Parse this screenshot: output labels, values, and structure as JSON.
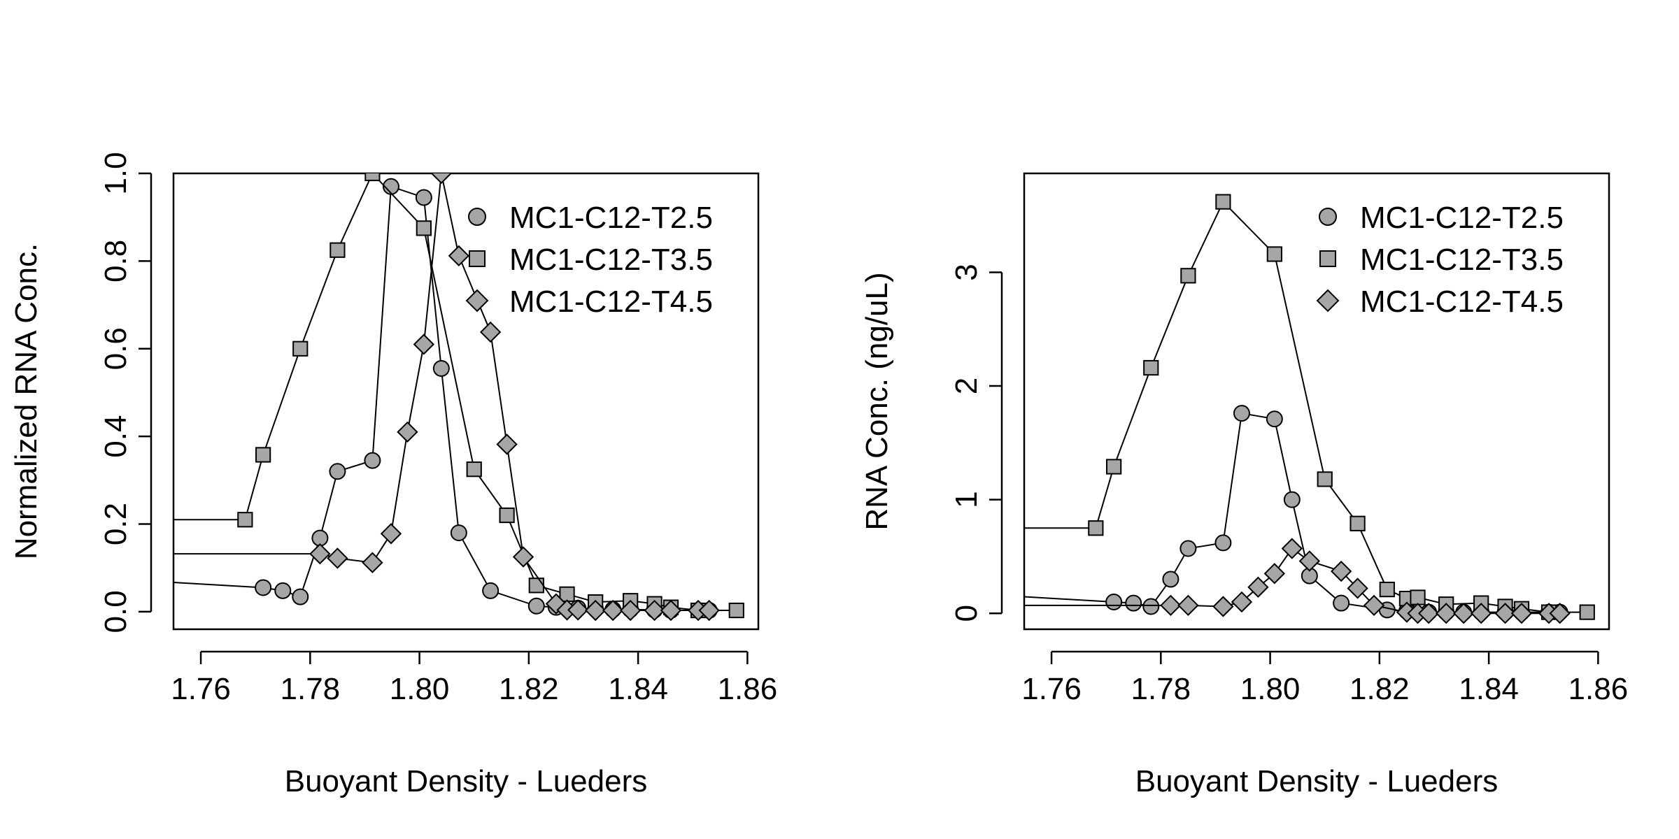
{
  "chart_data": [
    {
      "type": "line",
      "xlabel": "Buoyant Density - Lueders",
      "ylabel": "Normalized RNA Conc.",
      "xlim": [
        1.755,
        1.862
      ],
      "ylim": [
        -0.04,
        1.0
      ],
      "xticks": [
        1.76,
        1.78,
        1.8,
        1.82,
        1.84,
        1.86
      ],
      "xtick_labels": [
        "1.76",
        "1.78",
        "1.80",
        "1.82",
        "1.84",
        "1.86"
      ],
      "yticks": [
        0.0,
        0.2,
        0.4,
        0.6,
        0.8,
        1.0
      ],
      "ytick_labels": [
        "0.0",
        "0.2",
        "0.4",
        "0.6",
        "0.8",
        "1.0"
      ],
      "legend_position": "top-right",
      "grid": false,
      "marker_fill": "#a6a6a6",
      "series": [
        {
          "name": "MC1-C12-T2.5",
          "marker": "circle",
          "x": [
            1.7714,
            1.775,
            1.7782,
            1.7818,
            1.785,
            1.7914,
            1.7948,
            1.8008,
            1.804,
            1.8072,
            1.813,
            1.8214,
            1.825,
            1.829,
            1.8322,
            1.8354,
            1.8386,
            1.843,
            1.846,
            1.851,
            1.853
          ],
          "y": [
            0.055,
            0.048,
            0.034,
            0.168,
            0.32,
            0.345,
            0.97,
            0.945,
            0.555,
            0.18,
            0.048,
            0.013,
            0.01,
            0.008,
            0.006,
            0.005,
            0.005,
            0.004,
            0.003,
            0.003,
            0.003
          ]
        },
        {
          "name": "MC1-C12-T3.5",
          "marker": "square",
          "x": [
            1.7681,
            1.7714,
            1.7782,
            1.785,
            1.7914,
            1.8008,
            1.81,
            1.816,
            1.8214,
            1.827,
            1.8322,
            1.8386,
            1.843,
            1.846,
            1.851,
            1.858
          ],
          "y": [
            0.21,
            0.358,
            0.6,
            0.825,
            1.0,
            0.875,
            0.325,
            0.22,
            0.06,
            0.04,
            0.022,
            0.025,
            0.018,
            0.01,
            0.003,
            0.003
          ]
        },
        {
          "name": "MC1-C12-T4.5",
          "marker": "diamond",
          "x": [
            1.7818,
            1.785,
            1.7914,
            1.7948,
            1.7978,
            1.8008,
            1.804,
            1.8072,
            1.813,
            1.816,
            1.819,
            1.825,
            1.827,
            1.829,
            1.8322,
            1.8354,
            1.8386,
            1.843,
            1.846,
            1.851,
            1.853
          ],
          "y": [
            0.132,
            0.122,
            0.112,
            0.178,
            0.41,
            0.61,
            1.0,
            0.812,
            0.638,
            0.382,
            0.125,
            0.018,
            0.004,
            0.004,
            0.003,
            0.003,
            0.003,
            0.003,
            0.003,
            0.003,
            0.003
          ]
        }
      ]
    },
    {
      "type": "line",
      "xlabel": "Buoyant Density - Lueders",
      "ylabel": "RNA Conc.  (ng/uL)",
      "xlim": [
        1.755,
        1.862
      ],
      "ylim": [
        -0.14,
        3.87
      ],
      "xticks": [
        1.76,
        1.78,
        1.8,
        1.82,
        1.84,
        1.86
      ],
      "xtick_labels": [
        "1.76",
        "1.78",
        "1.80",
        "1.82",
        "1.84",
        "1.86"
      ],
      "yticks": [
        0,
        1,
        2,
        3
      ],
      "ytick_labels": [
        "0",
        "1",
        "2",
        "3"
      ],
      "legend_position": "top-right",
      "grid": false,
      "marker_fill": "#a6a6a6",
      "series": [
        {
          "name": "MC1-C12-T2.5",
          "marker": "circle",
          "x": [
            1.7714,
            1.775,
            1.7782,
            1.7818,
            1.785,
            1.7914,
            1.7948,
            1.8008,
            1.804,
            1.8072,
            1.813,
            1.8214,
            1.825,
            1.829,
            1.8322,
            1.8354,
            1.8386,
            1.843,
            1.846,
            1.851,
            1.853
          ],
          "y": [
            0.1,
            0.09,
            0.06,
            0.3,
            0.57,
            0.62,
            1.76,
            1.71,
            1.0,
            0.33,
            0.09,
            0.03,
            0.02,
            0.01,
            0.01,
            0.01,
            0.01,
            0.01,
            0.01,
            0.01,
            0.01
          ]
        },
        {
          "name": "MC1-C12-T3.5",
          "marker": "square",
          "x": [
            1.7681,
            1.7714,
            1.7782,
            1.785,
            1.7914,
            1.8008,
            1.81,
            1.816,
            1.8214,
            1.825,
            1.827,
            1.8322,
            1.8386,
            1.843,
            1.846,
            1.851,
            1.858
          ],
          "y": [
            0.75,
            1.29,
            2.16,
            2.97,
            3.62,
            3.16,
            1.18,
            0.79,
            0.21,
            0.13,
            0.14,
            0.08,
            0.09,
            0.06,
            0.04,
            0.01,
            0.01
          ]
        },
        {
          "name": "MC1-C12-T4.5",
          "marker": "diamond",
          "x": [
            1.7818,
            1.785,
            1.7914,
            1.7948,
            1.7978,
            1.8008,
            1.804,
            1.8072,
            1.813,
            1.816,
            1.819,
            1.825,
            1.827,
            1.829,
            1.8322,
            1.8354,
            1.8386,
            1.843,
            1.846,
            1.851,
            1.853
          ],
          "y": [
            0.07,
            0.07,
            0.06,
            0.1,
            0.23,
            0.35,
            0.57,
            0.46,
            0.37,
            0.22,
            0.07,
            0.01,
            0.0,
            0.0,
            0.0,
            0.0,
            0.0,
            0.0,
            0.0,
            0.0,
            0.0
          ]
        }
      ]
    }
  ]
}
